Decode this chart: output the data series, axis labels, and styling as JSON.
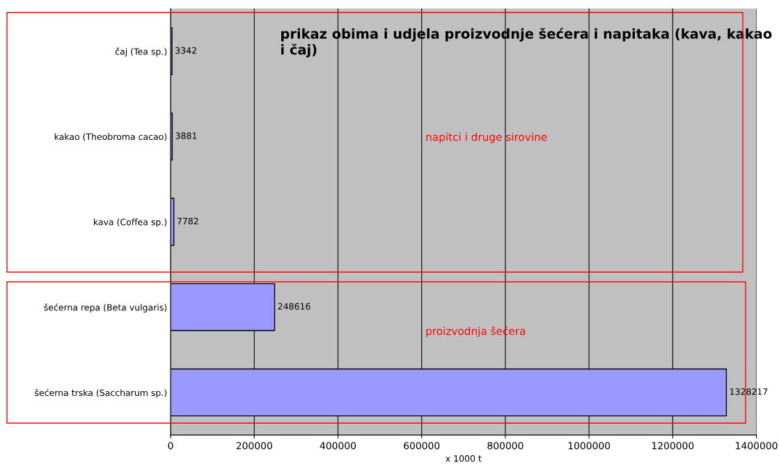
{
  "chart_data": {
    "type": "bar",
    "orientation": "horizontal",
    "title": "prikaz obima i udjela proizvodnje šećera i napitaka (kava, kakao i čaj)",
    "categories": [
      "čaj (Tea sp.)",
      "kakao (Theobroma cacao)",
      "kava (Coffea sp.)",
      "šećerna repa (Beta vulgaris)",
      "šećerna trska (Saccharum sp.)"
    ],
    "values": [
      3342,
      3881,
      7782,
      248616,
      1328217
    ],
    "color": "#9999ff",
    "xlim": [
      0,
      1400000
    ],
    "xticks": [
      0,
      200000,
      400000,
      600000,
      800000,
      1000000,
      1200000,
      1400000
    ],
    "xlabel": "x 1000 t",
    "grid": "x",
    "data_labels": true,
    "annotations": [
      "napitci i druge sirovine",
      "proizvodnja šećera"
    ]
  }
}
